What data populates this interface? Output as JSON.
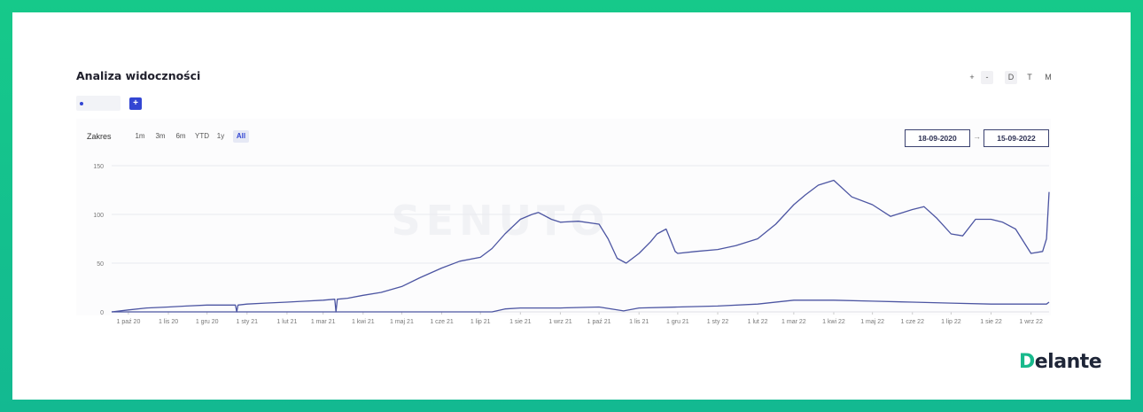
{
  "widget": {
    "title": "Analiza widoczności",
    "zoom_in": "+",
    "zoom_out": "-",
    "granularity": [
      "D",
      "T",
      "M"
    ],
    "add_series": "+",
    "range_label": "Zakres",
    "range_options": [
      "1m",
      "3m",
      "6m",
      "YTD",
      "1y",
      "All"
    ],
    "range_active": "All",
    "date_from": "18-09-2020",
    "date_arrow": "→",
    "date_to": "15-09-2022",
    "watermark": "SENUTO"
  },
  "brand": {
    "initial": "D",
    "rest": "elante"
  },
  "colors": {
    "line": "#4c55a2",
    "accent": "#3346d3",
    "frame": "#16c98a"
  },
  "chart_data": {
    "type": "line",
    "title": "",
    "xlabel": "",
    "ylabel": "",
    "ylim": [
      0,
      150
    ],
    "yticks": [
      0,
      50,
      100,
      150
    ],
    "x_tick_labels": [
      "1 paź 20",
      "1 lis 20",
      "1 gru 20",
      "1 sty 21",
      "1 lut 21",
      "1 mar 21",
      "1 kwi 21",
      "1 maj 21",
      "1 cze 21",
      "1 lip 21",
      "1 sie 21",
      "1 wrz 21",
      "1 paź 21",
      "1 lis 21",
      "1 gru 21",
      "1 sty 22",
      "1 lut 22",
      "1 mar 22",
      "1 kwi 22",
      "1 maj 22",
      "1 cze 22",
      "1 lip 22",
      "1 sie 22",
      "1 wrz 22"
    ],
    "grid": true,
    "legend": "none",
    "series": [
      {
        "x": [
          "2020-09-18",
          "2020-10-01",
          "2020-10-15",
          "2020-11-01",
          "2020-11-15",
          "2020-12-01",
          "2020-12-15",
          "2020-12-23",
          "2020-12-24",
          "2020-12-25",
          "2021-01-01",
          "2021-01-15",
          "2021-02-01",
          "2021-02-15",
          "2021-03-01",
          "2021-03-10",
          "2021-03-11",
          "2021-03-12",
          "2021-03-20",
          "2021-04-01",
          "2021-04-15",
          "2021-05-01",
          "2021-05-15",
          "2021-06-01",
          "2021-06-15",
          "2021-07-01",
          "2021-07-10",
          "2021-07-20",
          "2021-08-01",
          "2021-08-10",
          "2021-08-15",
          "2021-08-25",
          "2021-09-01",
          "2021-09-15",
          "2021-10-01",
          "2021-10-08",
          "2021-10-15",
          "2021-10-22",
          "2021-11-01",
          "2021-11-10",
          "2021-11-15",
          "2021-11-22",
          "2021-11-29",
          "2021-12-01",
          "2021-12-15",
          "2022-01-01",
          "2022-01-15",
          "2022-02-01",
          "2022-02-15",
          "2022-03-01",
          "2022-03-10",
          "2022-03-20",
          "2022-04-01",
          "2022-04-15",
          "2022-05-01",
          "2022-05-15",
          "2022-06-01",
          "2022-06-10",
          "2022-06-20",
          "2022-07-01",
          "2022-07-10",
          "2022-07-20",
          "2022-08-01",
          "2022-08-10",
          "2022-08-20",
          "2022-09-01",
          "2022-09-10",
          "2022-09-13",
          "2022-09-15"
        ],
        "y": [
          0,
          2,
          4,
          5,
          6,
          7,
          7,
          7,
          0,
          7,
          8,
          9,
          10,
          11,
          12,
          13,
          0,
          13,
          14,
          17,
          20,
          26,
          35,
          45,
          52,
          56,
          65,
          80,
          95,
          100,
          102,
          95,
          92,
          93,
          90,
          75,
          55,
          50,
          60,
          72,
          80,
          85,
          62,
          60,
          62,
          64,
          68,
          75,
          90,
          110,
          120,
          130,
          135,
          118,
          110,
          98,
          105,
          108,
          96,
          80,
          78,
          95,
          95,
          92,
          85,
          60,
          62,
          75,
          123
        ]
      },
      {
        "x": [
          "2020-09-18",
          "2021-07-10",
          "2021-07-20",
          "2021-08-01",
          "2021-09-01",
          "2021-10-01",
          "2021-10-20",
          "2021-11-01",
          "2021-12-01",
          "2022-01-01",
          "2022-02-01",
          "2022-03-01",
          "2022-04-01",
          "2022-05-01",
          "2022-06-01",
          "2022-07-01",
          "2022-08-01",
          "2022-09-01",
          "2022-09-13",
          "2022-09-15"
        ],
        "y": [
          0,
          0,
          3,
          4,
          4,
          5,
          1,
          4,
          5,
          6,
          8,
          12,
          12,
          11,
          10,
          9,
          8,
          8,
          8,
          10
        ]
      }
    ]
  }
}
